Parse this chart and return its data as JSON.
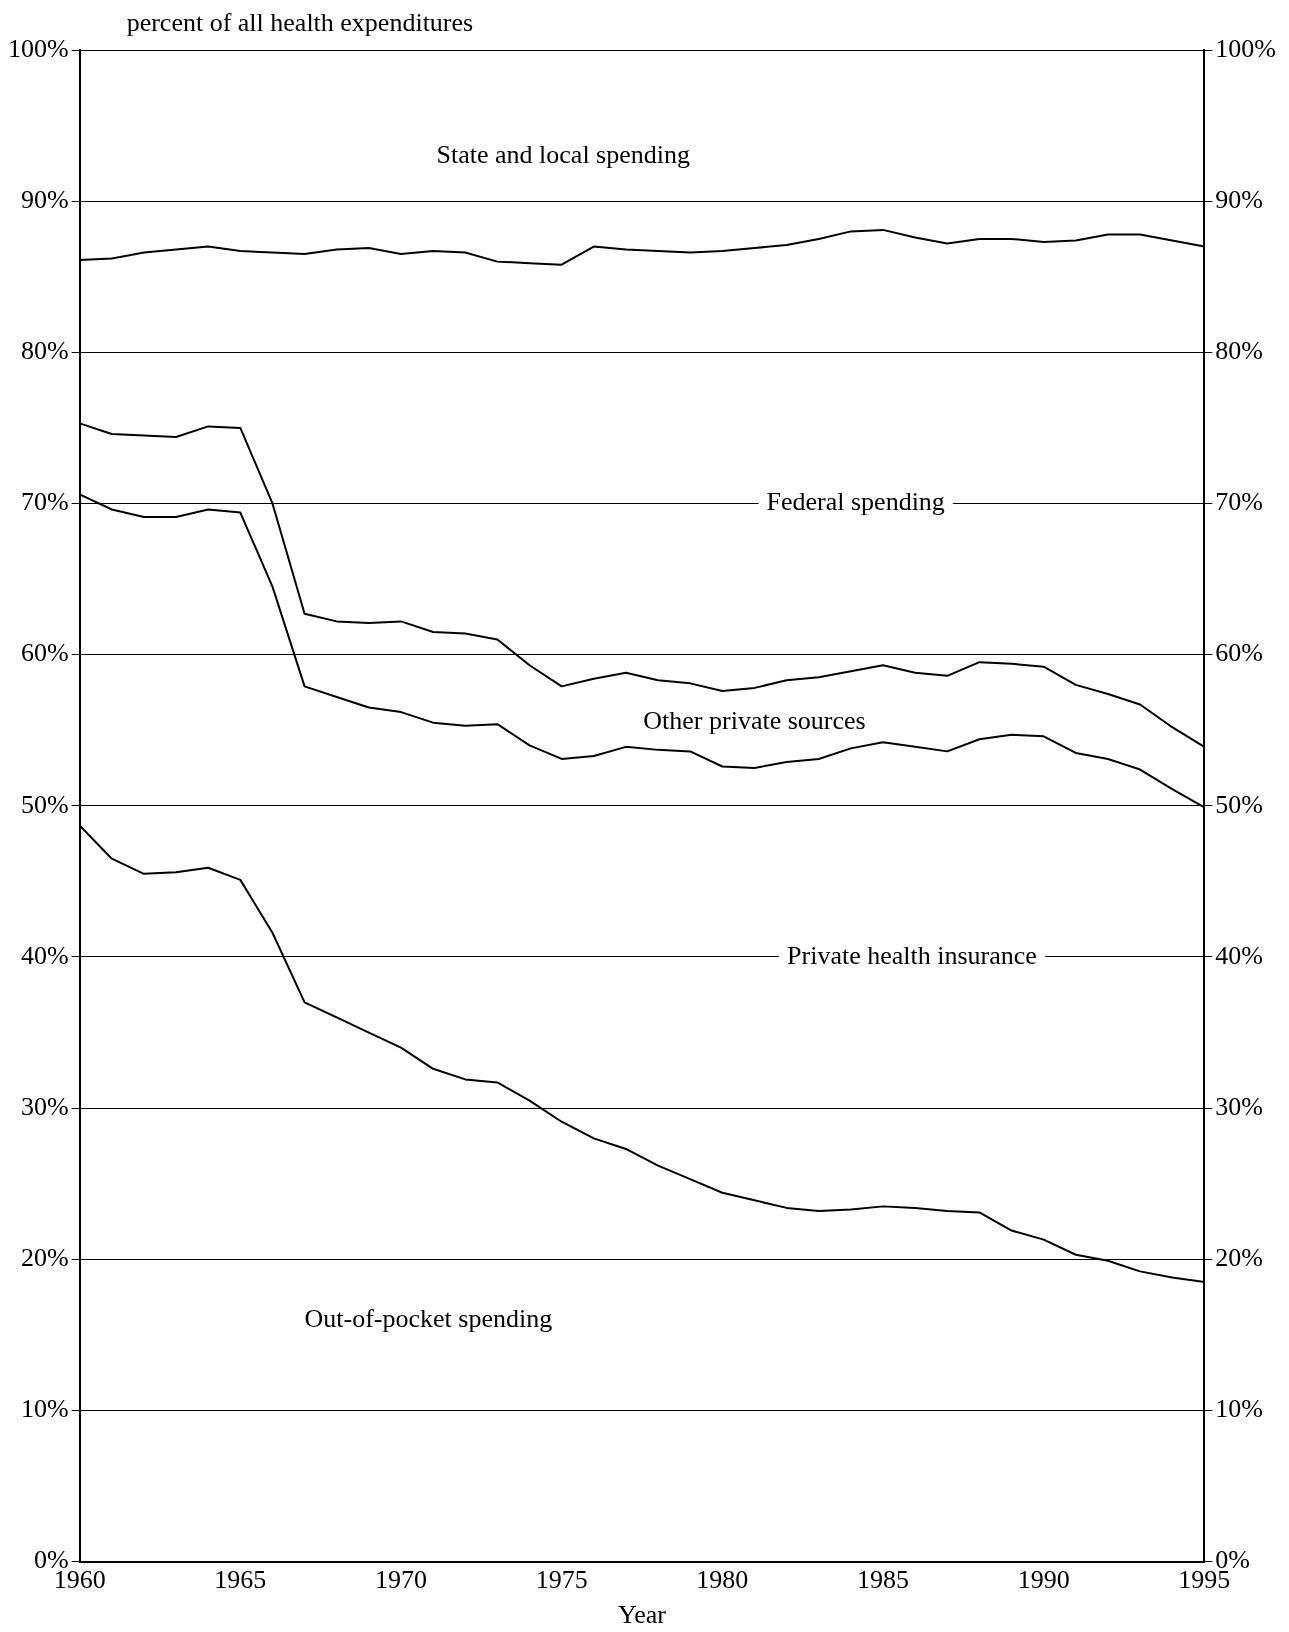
{
  "chart_data": {
    "type": "line",
    "ylabel": "percent of all health expenditures",
    "xlabel": "Year",
    "x": [
      1960,
      1961,
      1962,
      1963,
      1964,
      1965,
      1966,
      1967,
      1968,
      1969,
      1970,
      1971,
      1972,
      1973,
      1974,
      1975,
      1976,
      1977,
      1978,
      1979,
      1980,
      1981,
      1982,
      1983,
      1984,
      1985,
      1986,
      1987,
      1988,
      1989,
      1990,
      1991,
      1992,
      1993,
      1994,
      1995
    ],
    "series": [
      {
        "color": "#000000",
        "values": [
          48.7,
          46.5,
          45.5,
          45.6,
          45.9,
          45.1,
          41.6,
          37.0,
          36.0,
          35.0,
          34.0,
          32.6,
          31.9,
          31.7,
          30.5,
          29.1,
          28.0,
          27.3,
          26.2,
          25.3,
          24.4,
          23.9,
          23.4,
          23.2,
          23.3,
          23.5,
          23.4,
          23.2,
          23.1,
          21.9,
          21.3,
          20.3,
          19.9,
          19.2,
          18.8,
          18.5
        ]
      },
      {
        "color": "#000000",
        "values": [
          70.6,
          69.6,
          69.1,
          69.1,
          69.6,
          69.4,
          64.5,
          57.9,
          57.2,
          56.5,
          56.2,
          55.5,
          55.3,
          55.4,
          54.0,
          53.1,
          53.3,
          53.9,
          53.7,
          53.6,
          52.6,
          52.5,
          52.9,
          53.1,
          53.8,
          54.2,
          53.9,
          53.6,
          54.4,
          54.7,
          54.6,
          53.5,
          53.1,
          52.4,
          51.1,
          49.9
        ]
      },
      {
        "color": "#000000",
        "values": [
          75.3,
          74.6,
          74.5,
          74.4,
          75.1,
          75.0,
          70.0,
          62.7,
          62.2,
          62.1,
          62.2,
          61.5,
          61.4,
          61.0,
          59.3,
          57.9,
          58.4,
          58.8,
          58.3,
          58.1,
          57.6,
          57.8,
          58.3,
          58.5,
          58.9,
          59.3,
          58.8,
          58.6,
          59.5,
          59.4,
          59.2,
          58.0,
          57.4,
          56.7,
          55.2,
          53.9
        ]
      },
      {
        "color": "#000000",
        "values": [
          86.1,
          86.2,
          86.6,
          86.8,
          87.0,
          86.7,
          86.6,
          86.5,
          86.8,
          86.9,
          86.5,
          86.7,
          86.6,
          86.0,
          85.9,
          85.8,
          87.0,
          86.8,
          86.7,
          86.6,
          86.7,
          86.9,
          87.1,
          87.5,
          88.0,
          88.1,
          87.6,
          87.2,
          87.5,
          87.5,
          87.3,
          87.4,
          87.8,
          87.8,
          87.4,
          87.0
        ]
      }
    ],
    "annotations": [
      "State and local spending",
      "Federal spending",
      "Other private sources",
      "Private health insurance",
      "Out-of-pocket spending"
    ],
    "xlim": [
      1960,
      1995
    ],
    "xticks": [
      1960,
      1965,
      1970,
      1975,
      1980,
      1985,
      1990,
      1995
    ],
    "ylim": [
      0,
      100
    ],
    "yticks": [
      {
        "value": 0,
        "label": "0%"
      },
      {
        "value": 10,
        "label": "10%"
      },
      {
        "value": 20,
        "label": "20%"
      },
      {
        "value": 30,
        "label": "30%"
      },
      {
        "value": 40,
        "label": "40%"
      },
      {
        "value": 50,
        "label": "50%"
      },
      {
        "value": 60,
        "label": "60%"
      },
      {
        "value": 70,
        "label": "70%"
      },
      {
        "value": 80,
        "label": "80%"
      },
      {
        "value": 90,
        "label": "90%"
      },
      {
        "value": 100,
        "label": "100%"
      }
    ],
    "y2lim": [
      0,
      100
    ],
    "y2ticks": [
      {
        "value": 0,
        "label": "0%"
      },
      {
        "value": 10,
        "label": "10%"
      },
      {
        "value": 20,
        "label": "20%"
      },
      {
        "value": 30,
        "label": "30%"
      },
      {
        "value": 40,
        "label": "40%"
      },
      {
        "value": 50,
        "label": "50%"
      },
      {
        "value": 60,
        "label": "60%"
      },
      {
        "value": 70,
        "label": "70%"
      },
      {
        "value": 80,
        "label": "80%"
      },
      {
        "value": 90,
        "label": "90%"
      },
      {
        "value": 100,
        "label": "100%"
      }
    ],
    "grid": "y"
  }
}
